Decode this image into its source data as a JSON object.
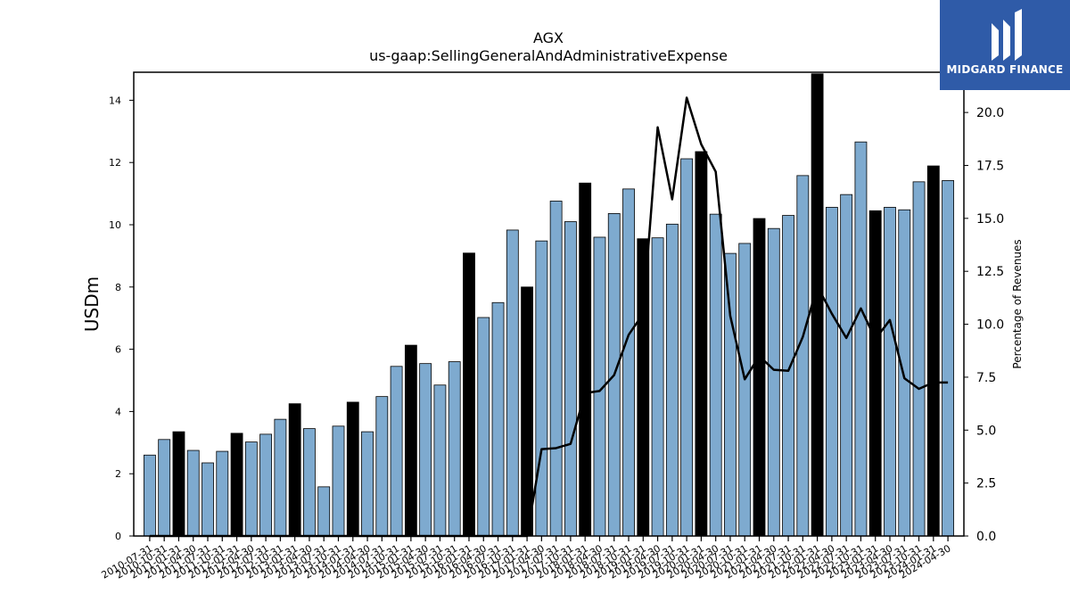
{
  "logo": {
    "text": "MIDGARD FINANCE"
  },
  "chart_data": {
    "type": "bar",
    "title": "AGX",
    "subtitle": "us-gaap:SellingGeneralAndAdministrativeExpense",
    "ylabel": "USDm",
    "y2label": "Percentage of Revenues",
    "ylim": [
      0,
      14.9
    ],
    "y2lim": [
      0,
      21.9
    ],
    "yticks": [
      0,
      2,
      4,
      6,
      8,
      10,
      12,
      14
    ],
    "y2ticks": [
      "0.0",
      "2.5",
      "5.0",
      "7.5",
      "10.0",
      "12.5",
      "15.0",
      "17.5",
      "20.0"
    ],
    "colors": {
      "bar": "#7eaacf",
      "highlight": "#000000",
      "line": "#000000"
    },
    "categories": [
      "2010-07-31",
      "2010-10-31",
      "2011-01-31",
      "2011-04-30",
      "2011-07-31",
      "2011-10-31",
      "2012-01-31",
      "2012-04-30",
      "2012-07-31",
      "2012-10-31",
      "2013-01-31",
      "2013-04-30",
      "2013-07-31",
      "2013-10-31",
      "2014-01-31",
      "2014-04-30",
      "2014-07-31",
      "2014-10-31",
      "2015-01-31",
      "2015-04-30",
      "2015-07-31",
      "2015-10-31",
      "2016-01-31",
      "2016-04-30",
      "2016-07-31",
      "2016-10-31",
      "2017-01-31",
      "2017-04-30",
      "2017-07-31",
      "2017-10-31",
      "2018-01-31",
      "2018-04-30",
      "2018-07-31",
      "2018-10-31",
      "2019-01-31",
      "2019-04-30",
      "2019-07-31",
      "2019-10-31",
      "2020-01-31",
      "2020-04-30",
      "2020-07-31",
      "2020-10-31",
      "2021-01-31",
      "2021-04-30",
      "2021-07-31",
      "2021-10-31",
      "2022-01-31",
      "2022-04-30",
      "2022-07-31",
      "2022-10-31",
      "2023-01-31",
      "2023-04-30",
      "2023-07-31",
      "2023-10-31",
      "2024-01-31",
      "2024-04-30"
    ],
    "tick_labels": [
      "2010-07-31",
      "2010-10-31",
      "2011-01-31",
      "2011-04-30",
      "2011-07-31",
      "2011-10-31",
      "2012-01-31",
      "2012-04-30",
      "2012-07-31",
      "2012-10-31",
      "2013-01-31",
      "2013-04-30",
      "2013-07-31",
      "2013-10-31",
      "2014-01-31",
      "2014-04-30",
      "2014-07-31",
      "2014-10-31",
      "2015-01-31",
      "2015-04-30",
      "2015-07-31",
      "2015-10-31",
      "2016-01-31",
      "2016-04-30",
      "2016-07-31",
      "2016-10-31",
      "2017-01-31",
      "2017-04-30",
      "2017-07-31",
      "2017-10-31",
      "2018-01-31",
      "2018-04-30",
      "2018-07-31",
      "2018-10-31",
      "2019-01-31",
      "2019-04-30",
      "2019-07-31",
      "2019-10-31",
      "2020-01-31",
      "2020-04-30",
      "2020-07-31",
      "2020-10-31",
      "2021-01-31",
      "2021-04-30",
      "2021-07-31",
      "2021-10-31",
      "2022-01-31",
      "2022-04-30",
      "2022-07-31",
      "2022-10-31",
      "2023-01-31",
      "2023-04-30",
      "2023-07-31",
      "2023-10-31",
      "2024-01-31",
      "2024-04-30"
    ],
    "series": [
      {
        "type": "bar",
        "values": [
          2.6,
          3.1,
          3.35,
          2.75,
          2.35,
          2.72,
          3.3,
          3.02,
          3.27,
          3.75,
          4.25,
          3.45,
          1.58,
          3.53,
          4.3,
          3.35,
          4.48,
          5.45,
          6.13,
          5.54,
          4.85,
          5.6,
          9.09,
          7.02,
          7.5,
          9.83,
          8.0,
          9.48,
          10.76,
          10.1,
          11.34,
          9.6,
          10.36,
          11.15,
          9.55,
          9.58,
          10.02,
          12.12,
          12.35,
          10.34,
          9.08,
          9.4,
          10.2,
          9.88,
          10.3,
          11.58,
          14.85,
          10.56,
          10.97,
          12.66,
          10.45,
          10.56,
          10.48,
          11.38,
          11.89,
          11.42
        ],
        "highlight": [
          false,
          false,
          true,
          false,
          false,
          false,
          true,
          false,
          false,
          false,
          true,
          false,
          false,
          false,
          true,
          false,
          false,
          false,
          true,
          false,
          false,
          false,
          true,
          false,
          false,
          false,
          true,
          false,
          false,
          false,
          true,
          false,
          false,
          false,
          true,
          false,
          false,
          false,
          true,
          false,
          false,
          false,
          true,
          false,
          false,
          false,
          true,
          false,
          false,
          false,
          true,
          false,
          false,
          false,
          true,
          false
        ]
      },
      {
        "type": "line",
        "axis": "right",
        "values": [
          0,
          0,
          0,
          0,
          0,
          0,
          0,
          0,
          0,
          0,
          0,
          0,
          0,
          0,
          0,
          0,
          0,
          0,
          0,
          0,
          0,
          0,
          0,
          0,
          0,
          0,
          0,
          4.1,
          4.15,
          4.35,
          6.75,
          6.85,
          7.6,
          9.5,
          10.5,
          19.3,
          15.9,
          20.7,
          18.5,
          17.2,
          10.4,
          7.4,
          8.5,
          7.85,
          7.8,
          9.4,
          11.8,
          10.5,
          9.35,
          10.75,
          9.3,
          10.2,
          7.45,
          6.95,
          7.25,
          7.25
        ]
      }
    ]
  }
}
